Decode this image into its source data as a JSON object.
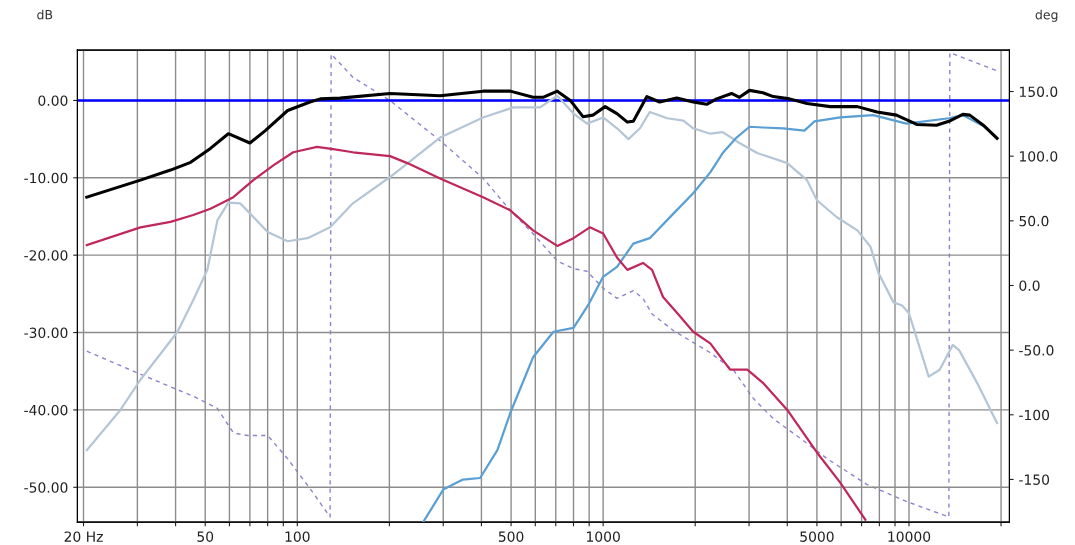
{
  "chart_data": {
    "type": "line",
    "xlabel": null,
    "ylabel": "dB",
    "y2label": "deg",
    "log": "x",
    "grid": true,
    "xlim": [
      19.1,
      21300
    ],
    "ylim": [
      -54.5,
      6.5
    ],
    "y2lim": [
      -183,
      182
    ],
    "xticks": [
      {
        "value": 20,
        "label": "20 Hz"
      },
      {
        "value": 30,
        "label": null
      },
      {
        "value": 40,
        "label": null
      },
      50,
      {
        "value": 60,
        "label": null
      },
      {
        "value": 70,
        "label": null
      },
      {
        "value": 80,
        "label": null
      },
      {
        "value": 90,
        "label": null
      },
      100,
      {
        "value": 200,
        "label": null
      },
      {
        "value": 300,
        "label": null
      },
      {
        "value": 400,
        "label": null
      },
      500,
      {
        "value": 600,
        "label": null
      },
      {
        "value": 700,
        "label": null
      },
      {
        "value": 800,
        "label": null
      },
      {
        "value": 900,
        "label": null
      },
      1000,
      {
        "value": 2000,
        "label": null
      },
      {
        "value": 3000,
        "label": null
      },
      {
        "value": 4000,
        "label": null
      },
      5000,
      {
        "value": 6000,
        "label": null
      },
      {
        "value": 7000,
        "label": null
      },
      {
        "value": 8000,
        "label": null
      },
      {
        "value": 9000,
        "label": null
      },
      10000,
      {
        "value": 20000,
        "label": null
      }
    ],
    "yticks": [
      {
        "value": 0,
        "label": "0.00"
      },
      {
        "value": -10,
        "label": "-10.00"
      },
      {
        "value": -20,
        "label": "-20.00"
      },
      {
        "value": -30,
        "label": "-30.00"
      },
      {
        "value": -40,
        "label": "-40.00"
      },
      {
        "value": -50,
        "label": "-50.00"
      }
    ],
    "y2ticks": [
      {
        "value": 150,
        "label": "150.0"
      },
      {
        "value": 100,
        "label": "100.0"
      },
      {
        "value": 50,
        "label": "50.0"
      },
      {
        "value": 0,
        "label": "0.0"
      },
      {
        "value": -50,
        "label": "-50.0"
      },
      -100,
      -150
    ],
    "ref_lines": [
      {
        "axis": "y",
        "value": 0,
        "label": null,
        "color": "#0000ff"
      }
    ],
    "series": [
      {
        "color": "#b4c6d6",
        "x": [
          20.5,
          26.4,
          30.7,
          40.6,
          45.7,
          50.8,
          54.8,
          59.5,
          65,
          70,
          80,
          93,
          108,
          128,
          152,
          201,
          293,
          405,
          509,
          622,
          708,
          800,
          886,
          1000,
          1110,
          1210,
          1320,
          1420,
          1620,
          1830,
          1970,
          2240,
          2460,
          2790,
          3190,
          4000,
          4640,
          5000,
          5810,
          6780,
          7480,
          7950,
          8900,
          9500,
          10000,
          11600,
          12600,
          13900,
          14600,
          16700,
          19400
        ],
        "values": [
          -45.2,
          -40,
          -36.1,
          -29.9,
          -25.8,
          -21.9,
          -15.5,
          -13.2,
          -13.3,
          -14.6,
          -17.0,
          -18.2,
          -17.8,
          -16.4,
          -13.3,
          -9.9,
          -4.8,
          -2.2,
          -0.9,
          -0.9,
          0.6,
          -1.7,
          -3.0,
          -2.2,
          -3.6,
          -5.0,
          -3.6,
          -1.5,
          -2.3,
          -2.6,
          -3.6,
          -4.3,
          -4.1,
          -5.5,
          -6.8,
          -8.1,
          -10.3,
          -12.9,
          -15.1,
          -16.8,
          -18.9,
          -22.3,
          -26.1,
          -26.5,
          -27.5,
          -35.7,
          -34.8,
          -31.6,
          -32.3,
          -36.5,
          -41.7
        ]
      },
      {
        "color": "#5a9fd4",
        "x": [
          258,
          300,
          348,
          396,
          451,
          497,
          590,
          688,
          800,
          892,
          1000,
          1110,
          1255,
          1420,
          1700,
          1970,
          2240,
          2460,
          2730,
          3010,
          3330,
          3880,
          4550,
          4910,
          5960,
          7640,
          9810,
          13500,
          15000,
          17500,
          19400
        ],
        "values": [
          -54.5,
          -50.3,
          -49.0,
          -48.8,
          -45.2,
          -40.4,
          -33.2,
          -29.9,
          -29.4,
          -26.5,
          -22.8,
          -21.5,
          -18.5,
          -17.8,
          -14.6,
          -12.0,
          -9.3,
          -6.8,
          -4.8,
          -3.4,
          -3.5,
          -3.6,
          -3.9,
          -2.7,
          -2.2,
          -1.9,
          -3.0,
          -2.3,
          -1.9,
          -3.3,
          -4.8
        ]
      },
      {
        "color": "#c0285a",
        "x": [
          20.5,
          30.7,
          38.5,
          45.7,
          52,
          61.8,
          71.8,
          83.5,
          97,
          116,
          131,
          152,
          201,
          229,
          293,
          405,
          497,
          590,
          708,
          800,
          905,
          1000,
          1110,
          1200,
          1350,
          1445,
          1570,
          1740,
          1970,
          2240,
          2600,
          2960,
          3330,
          4000,
          5000,
          5960,
          7200
        ],
        "values": [
          -18.7,
          -16.4,
          -15.7,
          -14.8,
          -14.0,
          -12.5,
          -10.3,
          -8.4,
          -6.7,
          -6.0,
          -6.3,
          -6.7,
          -7.2,
          -8.1,
          -10.1,
          -12.5,
          -14.2,
          -16.8,
          -18.8,
          -17.8,
          -16.4,
          -17.2,
          -20.3,
          -21.9,
          -21.0,
          -21.9,
          -25.4,
          -27.4,
          -29.9,
          -31.4,
          -34.8,
          -34.8,
          -36.5,
          -40,
          -45.5,
          -49.4,
          -54.2
        ]
      },
      {
        "color": "#9080d0",
        "axis": "y2",
        "line_style": "dashed",
        "x": [
          20.5,
          30.7,
          45.7,
          54.8,
          61.8,
          68.6,
          80,
          93,
          110,
          128,
          129,
          152,
          201,
          293,
          405,
          497,
          590,
          708,
          800,
          886,
          1000,
          1110,
          1255,
          1350,
          1445,
          1700,
          2240,
          2680,
          3090,
          3600,
          4400,
          5400,
          7300,
          9800,
          13500,
          13600,
          19400
        ],
        "values": [
          -50.8,
          -68.6,
          -85.7,
          -95,
          -114,
          -116,
          -116,
          -134,
          -157,
          -179,
          179,
          161,
          143,
          112,
          83,
          58,
          40,
          19,
          13,
          11,
          -2,
          -10,
          -4,
          -10,
          -22,
          -35,
          -52,
          -66,
          -87,
          -103,
          -118,
          -134,
          -154,
          -167,
          -179,
          180,
          166
        ]
      },
      {
        "color": "#000000",
        "x": [
          20.5,
          30.7,
          38.5,
          44.8,
          52,
          59.5,
          70,
          78.6,
          93,
          110,
          119,
          138,
          201,
          293,
          405,
          497,
          590,
          636,
          708,
          781,
          859,
          925,
          1015,
          1110,
          1200,
          1255,
          1390,
          1530,
          1740,
          1970,
          2180,
          2350,
          2630,
          2790,
          3010,
          3330,
          3600,
          4070,
          4640,
          5530,
          6780,
          7860,
          9100,
          10600,
          12300,
          13500,
          15000,
          15800,
          17500,
          19400
        ],
        "values": [
          -12.5,
          -10.3,
          -9.0,
          -8.0,
          -6.2,
          -4.3,
          -5.5,
          -3.9,
          -1.3,
          -0.2,
          0.2,
          0.3,
          0.9,
          0.6,
          1.2,
          1.2,
          0.4,
          0.4,
          1.2,
          0,
          -2.1,
          -1.9,
          -0.8,
          -1.7,
          -2.8,
          -2.7,
          0.5,
          -0.2,
          0.3,
          -0.2,
          -0.5,
          0.2,
          0.9,
          0.4,
          1.3,
          1.0,
          0.5,
          0.2,
          -0.4,
          -0.8,
          -0.8,
          -1.5,
          -1.9,
          -3.1,
          -3.2,
          -2.7,
          -1.8,
          -1.9,
          -3.2,
          -4.9
        ]
      }
    ]
  }
}
